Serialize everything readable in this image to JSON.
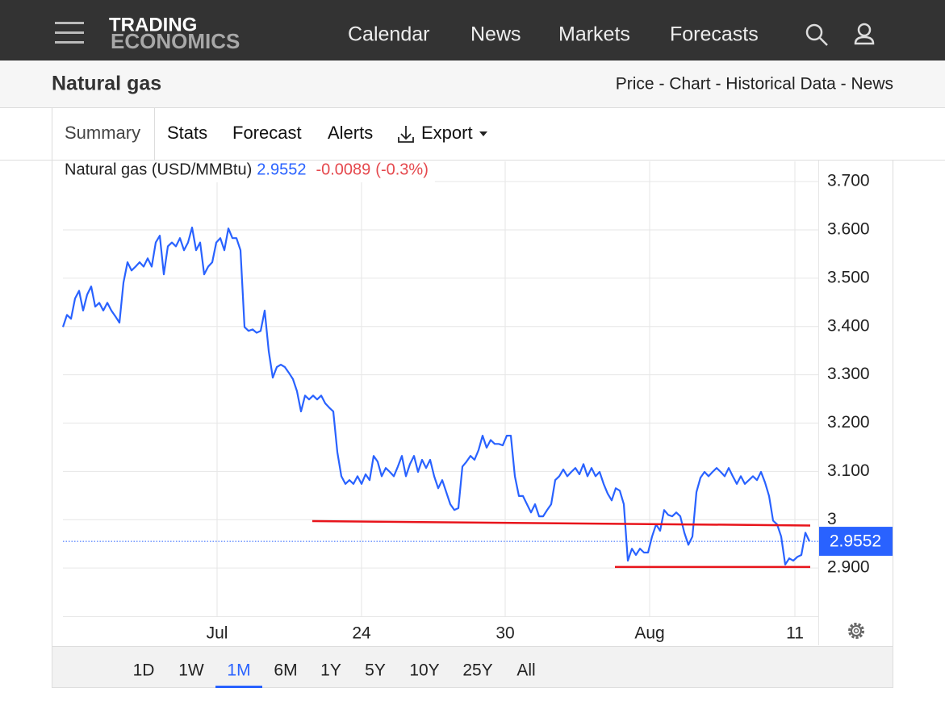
{
  "logo": [
    "TRADING",
    "ECONOMICS"
  ],
  "nav": [
    "Calendar",
    "News",
    "Markets",
    "Forecasts"
  ],
  "header": {
    "title": "Natural gas",
    "links": "Price - Chart - Historical Data - News"
  },
  "tabs": [
    "Summary",
    "Stats",
    "Forecast",
    "Alerts",
    "Export"
  ],
  "selected_tab": 0,
  "chart_data": {
    "type": "line",
    "series_label": "Natural gas (USD/MMBtu)",
    "price": 2.9552,
    "change": -0.0089,
    "change_percent": "(-0.3%)",
    "color": "#2962ff",
    "price_color": "#2962ff",
    "change_color": "#e5484d",
    "values": [
      3.399,
      3.424,
      3.416,
      3.458,
      3.474,
      3.433,
      3.466,
      3.483,
      3.441,
      3.449,
      3.433,
      3.449,
      3.433,
      3.421,
      3.408,
      3.491,
      3.533,
      3.516,
      3.524,
      3.533,
      3.524,
      3.541,
      3.524,
      3.574,
      3.588,
      3.508,
      3.566,
      3.574,
      3.566,
      3.583,
      3.558,
      3.574,
      3.605,
      3.558,
      3.574,
      3.508,
      3.524,
      3.533,
      3.574,
      3.583,
      3.558,
      3.603,
      3.583,
      3.583,
      3.558,
      3.399,
      3.391,
      3.394,
      3.387,
      3.391,
      3.433,
      3.349,
      3.294,
      3.316,
      3.321,
      3.316,
      3.304,
      3.291,
      3.266,
      3.224,
      3.257,
      3.249,
      3.257,
      3.249,
      3.257,
      3.241,
      3.232,
      3.224,
      3.14,
      3.09,
      3.074,
      3.082,
      3.074,
      3.09,
      3.074,
      3.094,
      3.082,
      3.132,
      3.12,
      3.09,
      3.107,
      3.099,
      3.09,
      3.11,
      3.132,
      3.09,
      3.115,
      3.132,
      3.099,
      3.124,
      3.107,
      3.124,
      3.09,
      3.065,
      3.082,
      3.057,
      3.032,
      3.02,
      3.024,
      3.11,
      3.12,
      3.132,
      3.124,
      3.144,
      3.174,
      3.149,
      3.165,
      3.157,
      3.157,
      3.154,
      3.174,
      3.174,
      3.09,
      3.049,
      3.049,
      3.032,
      3.015,
      3.032,
      3.007,
      3.007,
      3.02,
      3.032,
      3.082,
      3.09,
      3.104,
      3.09,
      3.099,
      3.107,
      3.094,
      3.115,
      3.09,
      3.107,
      3.09,
      3.099,
      3.074,
      3.054,
      3.04,
      3.065,
      3.06,
      3.032,
      2.915,
      2.94,
      2.927,
      2.94,
      2.932,
      2.932,
      2.965,
      2.99,
      2.977,
      3.02,
      3.01,
      3.007,
      3.015,
      3.007,
      2.973,
      2.948,
      2.965,
      3.057,
      3.087,
      3.099,
      3.09,
      3.099,
      3.107,
      3.099,
      3.09,
      3.107,
      3.09,
      3.074,
      3.09,
      3.074,
      3.082,
      3.09,
      3.082,
      3.099,
      3.077,
      3.049,
      2.998,
      2.99,
      2.965,
      2.907,
      2.92,
      2.915,
      2.923,
      2.927,
      2.973,
      2.9552
    ],
    "xlim": [
      0,
      187.2
    ],
    "xticks": [
      {
        "value": 38.2,
        "label": "Jul"
      },
      {
        "value": 74,
        "label": "24"
      },
      {
        "value": 109.6,
        "label": "30"
      },
      {
        "value": 145.4,
        "label": "Aug"
      },
      {
        "value": 181.4,
        "label": "11"
      }
    ],
    "ylim": [
      2.8,
      3.742
    ],
    "yticks": [
      {
        "value": 2.9,
        "label": "2.900"
      },
      3,
      {
        "value": 3.1,
        "label": "3.100"
      },
      {
        "value": 3.2,
        "label": "3.200"
      },
      {
        "value": 3.3,
        "label": "3.300"
      },
      {
        "value": 3.4,
        "label": "3.400"
      },
      {
        "value": 3.5,
        "label": "3.500"
      },
      {
        "value": 3.6,
        "label": "3.600"
      },
      {
        "value": 3.7,
        "label": "3.700"
      }
    ],
    "grid": true,
    "trendlines": [
      {
        "color": "#e8141b",
        "x": [
          61.8,
          185.2
        ],
        "values": [
          2.997,
          2.988
        ]
      },
      {
        "color": "#e8141b",
        "x": [
          136.8,
          185.2
        ],
        "values": [
          2.902,
          2.902
        ]
      }
    ]
  },
  "ranges": [
    "1D",
    "1W",
    "1M",
    "6M",
    "1Y",
    "5Y",
    "10Y",
    "25Y",
    "All"
  ],
  "selected_range": 2
}
